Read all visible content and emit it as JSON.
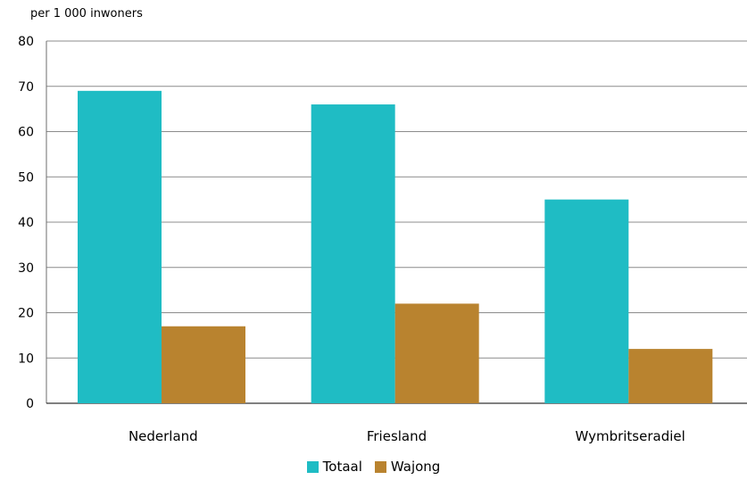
{
  "chart_data": {
    "type": "bar",
    "ylabel": "per 1 000 inwoners",
    "categories": [
      "Nederland",
      "Friesland",
      "Wymbritseradiel"
    ],
    "series": [
      {
        "name": "Totaal",
        "color": "#1fbcc4",
        "values": [
          69,
          66,
          45
        ]
      },
      {
        "name": "Wajong",
        "color": "#b9832f",
        "values": [
          17,
          22,
          12
        ]
      }
    ],
    "ylim": [
      0,
      80
    ],
    "yticks": [
      "0",
      "10",
      "20",
      "30",
      "40",
      "50",
      "60",
      "70",
      "80"
    ],
    "grid": true,
    "legend_position": "bottom"
  }
}
